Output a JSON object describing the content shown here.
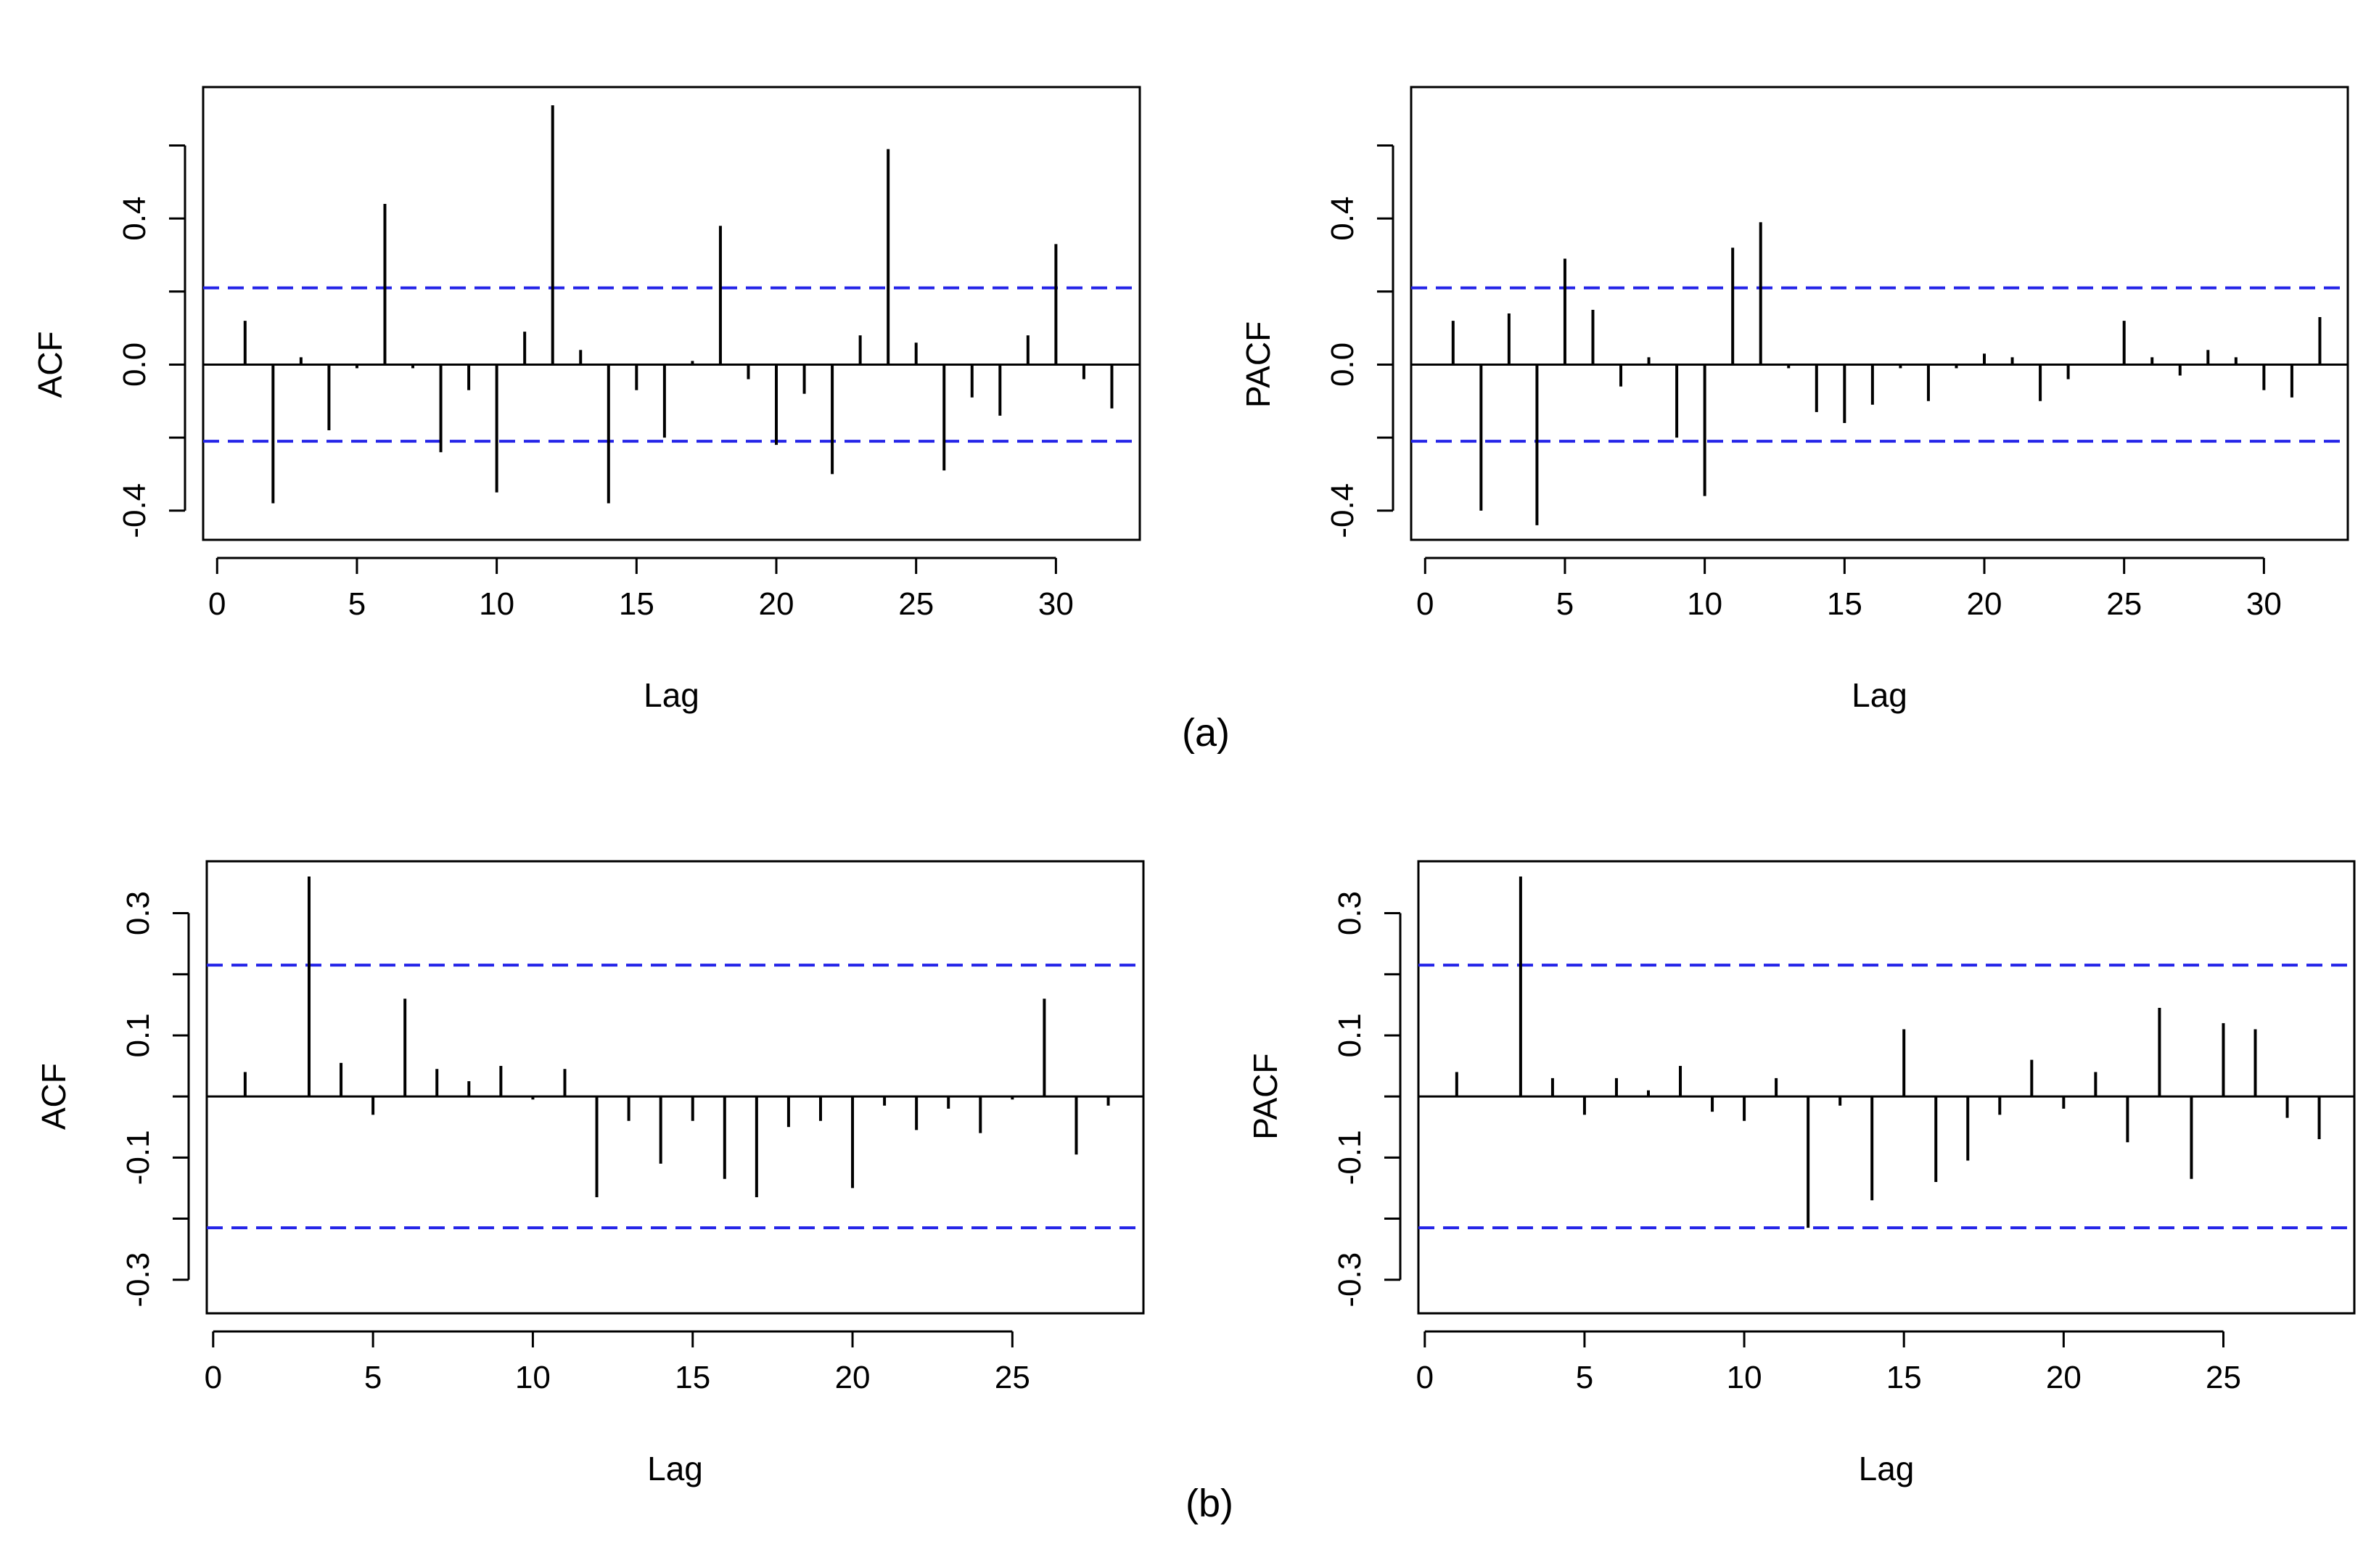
{
  "chart_data": [
    {
      "id": "a-acf",
      "type": "bar",
      "subtype": "correlogram",
      "panel": "(a)",
      "xlabel": "Lag",
      "ylabel": "ACF",
      "xlim": [
        -0.5,
        33
      ],
      "ylim": [
        -0.48,
        0.76
      ],
      "xticks": [
        0,
        5,
        10,
        15,
        20,
        25,
        30
      ],
      "xtick_labels": [
        "0",
        "5",
        "10",
        "15",
        "20",
        "25",
        "30"
      ],
      "yticks": [
        -0.4,
        0.0,
        0.4
      ],
      "ytick_labels": [
        "-0.4",
        "0.0",
        "0.4"
      ],
      "minor_yticks": [
        -0.2,
        0.2,
        0.6
      ],
      "confidence_band": 0.21,
      "band_color": "#2424e8",
      "x": [
        1,
        2,
        3,
        4,
        5,
        6,
        7,
        8,
        9,
        10,
        11,
        12,
        13,
        14,
        15,
        16,
        17,
        18,
        19,
        20,
        21,
        22,
        23,
        24,
        25,
        26,
        27,
        28,
        29,
        30,
        31,
        32
      ],
      "values": [
        0.12,
        -0.38,
        0.02,
        -0.18,
        -0.01,
        0.44,
        -0.01,
        -0.24,
        -0.07,
        -0.35,
        0.09,
        0.71,
        0.04,
        -0.38,
        -0.07,
        -0.2,
        0.01,
        0.38,
        -0.04,
        -0.22,
        -0.08,
        -0.3,
        0.08,
        0.59,
        0.06,
        -0.29,
        -0.09,
        -0.14,
        0.08,
        0.33,
        -0.04,
        -0.12
      ]
    },
    {
      "id": "a-pacf",
      "type": "bar",
      "subtype": "correlogram",
      "panel": "(a)",
      "xlabel": "Lag",
      "ylabel": "PACF",
      "xlim": [
        -0.5,
        33
      ],
      "ylim": [
        -0.48,
        0.76
      ],
      "xticks": [
        0,
        5,
        10,
        15,
        20,
        25,
        30
      ],
      "xtick_labels": [
        "0",
        "5",
        "10",
        "15",
        "20",
        "25",
        "30"
      ],
      "yticks": [
        -0.4,
        0.0,
        0.4
      ],
      "ytick_labels": [
        "-0.4",
        "0.0",
        "0.4"
      ],
      "minor_yticks": [
        -0.2,
        0.2,
        0.6
      ],
      "confidence_band": 0.21,
      "band_color": "#2424e8",
      "x": [
        1,
        2,
        3,
        4,
        5,
        6,
        7,
        8,
        9,
        10,
        11,
        12,
        13,
        14,
        15,
        16,
        17,
        18,
        19,
        20,
        21,
        22,
        23,
        24,
        25,
        26,
        27,
        28,
        29,
        30,
        31,
        32
      ],
      "values": [
        0.12,
        -0.4,
        0.14,
        -0.44,
        0.29,
        0.15,
        -0.06,
        0.02,
        -0.2,
        -0.36,
        0.32,
        0.39,
        -0.01,
        -0.13,
        -0.16,
        -0.11,
        -0.01,
        -0.1,
        -0.01,
        0.03,
        0.02,
        -0.1,
        -0.04,
        0.0,
        0.12,
        0.02,
        -0.03,
        0.04,
        0.02,
        -0.07,
        -0.09,
        0.13
      ]
    },
    {
      "id": "b-acf",
      "type": "bar",
      "subtype": "correlogram",
      "panel": "(b)",
      "xlabel": "Lag",
      "ylabel": "ACF",
      "xlim": [
        -0.2,
        29.1
      ],
      "ylim": [
        -0.355,
        0.385
      ],
      "xticks": [
        0,
        5,
        10,
        15,
        20,
        25
      ],
      "xtick_labels": [
        "0",
        "5",
        "10",
        "15",
        "20",
        "25"
      ],
      "yticks": [
        -0.3,
        -0.1,
        0.1,
        0.3
      ],
      "ytick_labels": [
        "-0.3",
        "-0.1",
        "0.1",
        "0.3"
      ],
      "minor_yticks": [
        -0.2,
        0.0,
        0.2
      ],
      "confidence_band": 0.215,
      "band_color": "#2424e8",
      "x": [
        1,
        2,
        3,
        4,
        5,
        6,
        7,
        8,
        9,
        10,
        11,
        12,
        13,
        14,
        15,
        16,
        17,
        18,
        19,
        20,
        21,
        22,
        23,
        24,
        25,
        26,
        27,
        28
      ],
      "values": [
        0.04,
        0.0,
        0.36,
        0.055,
        -0.03,
        0.16,
        0.045,
        0.025,
        0.05,
        -0.005,
        0.045,
        -0.165,
        -0.04,
        -0.11,
        -0.04,
        -0.135,
        -0.165,
        -0.05,
        -0.04,
        -0.15,
        -0.015,
        -0.055,
        -0.02,
        -0.06,
        -0.005,
        0.16,
        -0.095,
        -0.015
      ]
    },
    {
      "id": "b-pacf",
      "type": "bar",
      "subtype": "correlogram",
      "panel": "(b)",
      "xlabel": "Lag",
      "ylabel": "PACF",
      "xlim": [
        -0.2,
        29.1
      ],
      "ylim": [
        -0.355,
        0.385
      ],
      "xticks": [
        0,
        5,
        10,
        15,
        20,
        25
      ],
      "xtick_labels": [
        "0",
        "5",
        "10",
        "15",
        "20",
        "25"
      ],
      "yticks": [
        -0.3,
        -0.1,
        0.1,
        0.3
      ],
      "ytick_labels": [
        "-0.3",
        "-0.1",
        "0.1",
        "0.3"
      ],
      "minor_yticks": [
        -0.2,
        0.0,
        0.2
      ],
      "confidence_band": 0.215,
      "band_color": "#2424e8",
      "x": [
        1,
        2,
        3,
        4,
        5,
        6,
        7,
        8,
        9,
        10,
        11,
        12,
        13,
        14,
        15,
        16,
        17,
        18,
        19,
        20,
        21,
        22,
        23,
        24,
        25,
        26,
        27,
        28
      ],
      "values": [
        0.04,
        0.0,
        0.36,
        0.03,
        -0.03,
        0.03,
        0.01,
        0.05,
        -0.025,
        -0.04,
        0.03,
        -0.215,
        -0.015,
        -0.17,
        0.11,
        -0.14,
        -0.105,
        -0.03,
        0.06,
        -0.02,
        0.04,
        -0.075,
        0.145,
        -0.135,
        0.12,
        0.11,
        -0.035,
        -0.07
      ]
    }
  ],
  "captions": {
    "a": "(a)",
    "b": "(b)"
  },
  "colors": {
    "stem": "#000000",
    "frame": "#000000",
    "band": "#2424e8",
    "background": "#ffffff"
  }
}
